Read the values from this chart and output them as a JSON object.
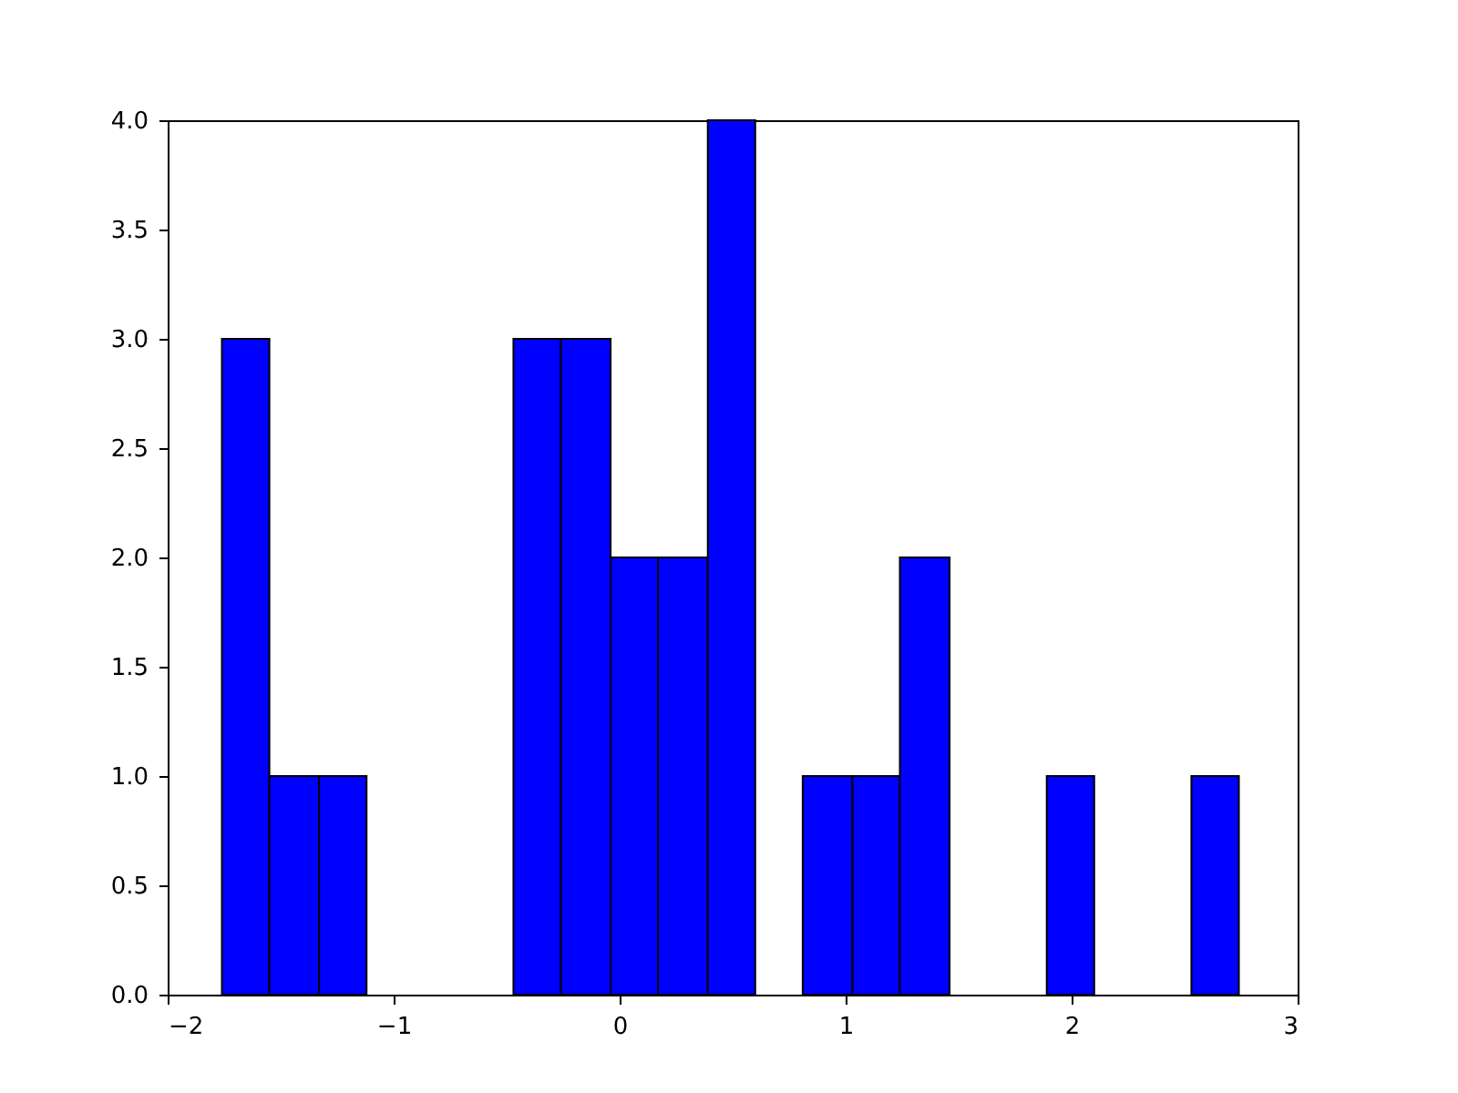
{
  "chart_data": {
    "type": "histogram",
    "bins": [
      -1.76,
      -1.55,
      -1.33,
      -1.12,
      -0.47,
      -0.26,
      -0.04,
      0.17,
      0.39,
      0.6,
      0.81,
      1.03,
      1.24,
      1.46,
      1.89,
      2.1,
      2.53,
      2.74
    ],
    "values": [
      3,
      1,
      1,
      0,
      3,
      3,
      2,
      2,
      4,
      0,
      1,
      1,
      2,
      0,
      1,
      0,
      1
    ],
    "color": "#0000ff",
    "xlim": [
      -2,
      3
    ],
    "xticks": [
      {
        "value": -2,
        "label": "−2"
      },
      {
        "value": -1,
        "label": "−1"
      },
      0,
      1,
      2,
      3
    ],
    "ylim": [
      0,
      4
    ],
    "yticks": [
      {
        "value": 0,
        "label": "0.0"
      },
      {
        "value": 0.5,
        "label": "0.5"
      },
      {
        "value": 1,
        "label": "1.0"
      },
      {
        "value": 1.5,
        "label": "1.5"
      },
      {
        "value": 2,
        "label": "2.0"
      },
      {
        "value": 2.5,
        "label": "2.5"
      },
      {
        "value": 3,
        "label": "3.0"
      },
      {
        "value": 3.5,
        "label": "3.5"
      },
      {
        "value": 4,
        "label": "4.0"
      }
    ],
    "grid": false
  }
}
